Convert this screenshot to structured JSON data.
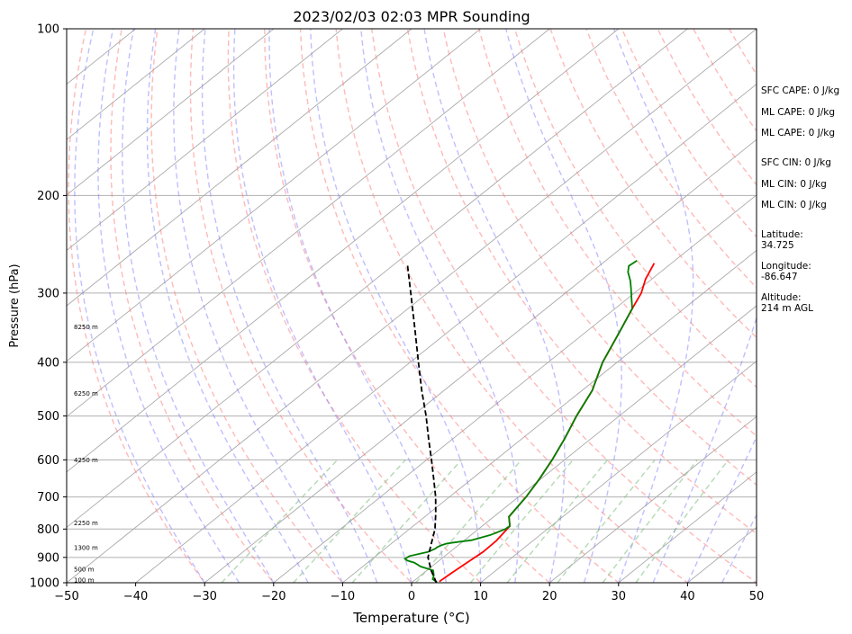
{
  "chart_data": {
    "type": "skew-t log-p sounding",
    "title": "2023/02/03 02:03 MPR Sounding",
    "xlabel": "Temperature (°C)",
    "ylabel": "Pressure (hPa)",
    "xlim": [
      -50,
      50
    ],
    "ylim": [
      1000,
      100
    ],
    "y_scale": "log",
    "x_ticks": [
      -50,
      -40,
      -30,
      -20,
      -10,
      0,
      10,
      20,
      30,
      40,
      50
    ],
    "y_ticks": [
      1000,
      900,
      800,
      700,
      600,
      500,
      400,
      300,
      200,
      100
    ],
    "grid": "horizontal lines at pressure ticks",
    "height_labels": [
      {
        "text": "100 m",
        "pressure": 988
      },
      {
        "text": "500 m",
        "pressure": 945
      },
      {
        "text": "1300 m",
        "pressure": 865
      },
      {
        "text": "2250 m",
        "pressure": 780
      },
      {
        "text": "4250 m",
        "pressure": 600
      },
      {
        "text": "6250 m",
        "pressure": 455
      },
      {
        "text": "8250 m",
        "pressure": 345
      }
    ],
    "series": [
      {
        "color": "#ff0000",
        "role": "temperature",
        "points": [
          [
            995,
            3.8
          ],
          [
            965,
            4.0
          ],
          [
            930,
            4.3
          ],
          [
            880,
            4.8
          ],
          [
            840,
            4.7
          ],
          [
            810,
            4.3
          ],
          [
            790,
            4.0
          ],
          [
            760,
            2.2
          ],
          [
            700,
            1.1
          ],
          [
            650,
            -0.2
          ],
          [
            600,
            -1.8
          ],
          [
            550,
            -3.8
          ],
          [
            500,
            -6.2
          ],
          [
            450,
            -8.5
          ],
          [
            400,
            -12.1
          ],
          [
            350,
            -15.3
          ],
          [
            320,
            -17.5
          ],
          [
            300,
            -19.0
          ],
          [
            283,
            -20.9
          ],
          [
            265,
            -22.5
          ]
        ]
      },
      {
        "color": "#008000",
        "role": "dewpoint",
        "points": [
          [
            998,
            3.6
          ],
          [
            985,
            2.4
          ],
          [
            970,
            1.9
          ],
          [
            950,
            0.9
          ],
          [
            935,
            -1.6
          ],
          [
            920,
            -3.2
          ],
          [
            912,
            -4.6
          ],
          [
            905,
            -5.3
          ],
          [
            895,
            -5.1
          ],
          [
            880,
            -3.2
          ],
          [
            868,
            -2.7
          ],
          [
            862,
            -2.7
          ],
          [
            855,
            -2.4
          ],
          [
            850,
            -2.0
          ],
          [
            846,
            -1.2
          ],
          [
            838,
            1.0
          ],
          [
            820,
            2.8
          ],
          [
            800,
            3.9
          ],
          [
            790,
            4.0
          ],
          [
            760,
            2.2
          ],
          [
            700,
            1.1
          ],
          [
            650,
            -0.2
          ],
          [
            600,
            -1.8
          ],
          [
            550,
            -3.8
          ],
          [
            500,
            -6.2
          ],
          [
            450,
            -8.5
          ],
          [
            400,
            -12.1
          ],
          [
            350,
            -15.3
          ],
          [
            320,
            -17.5
          ],
          [
            305,
            -19.7
          ],
          [
            295,
            -21.2
          ],
          [
            285,
            -22.8
          ],
          [
            275,
            -24.7
          ],
          [
            268,
            -25.7
          ],
          [
            262,
            -25.5
          ]
        ]
      },
      {
        "color": "#000000",
        "style": "dashed",
        "role": "parcel",
        "points": [
          [
            1000,
            3.6
          ],
          [
            950,
            0.6
          ],
          [
            900,
            -2.2
          ],
          [
            850,
            -4.2
          ],
          [
            800,
            -6.3
          ],
          [
            750,
            -9.0
          ],
          [
            700,
            -12.0
          ],
          [
            650,
            -15.5
          ],
          [
            600,
            -19.3
          ],
          [
            550,
            -23.5
          ],
          [
            500,
            -28.0
          ],
          [
            450,
            -33.2
          ],
          [
            400,
            -38.8
          ],
          [
            350,
            -45.1
          ],
          [
            300,
            -52.4
          ],
          [
            265,
            -58.3
          ]
        ]
      }
    ],
    "reference_lines": {
      "isotherms_color": "#aaaaaa",
      "dry_adiabats_color": "#ff8080",
      "moist_adiabats_color": "#8080ff",
      "mixing_ratio_color": "#80c080"
    }
  },
  "info_panel": {
    "sfc_cape": "SFC CAPE: 0 J/kg",
    "ml_cape_1": "ML CAPE: 0 J/kg",
    "ml_cape_2": "ML CAPE: 0 J/kg",
    "sfc_cin": "SFC CIN: 0 J/kg",
    "ml_cin_1": "ML CIN: 0 J/kg",
    "ml_cin_2": "ML CIN: 0 J/kg",
    "latitude_label": "Latitude:",
    "latitude_value": "34.725",
    "longitude_label": "Longitude:",
    "longitude_value": "-86.647",
    "altitude_label": "Altitude:",
    "altitude_value": "214 m AGL"
  }
}
